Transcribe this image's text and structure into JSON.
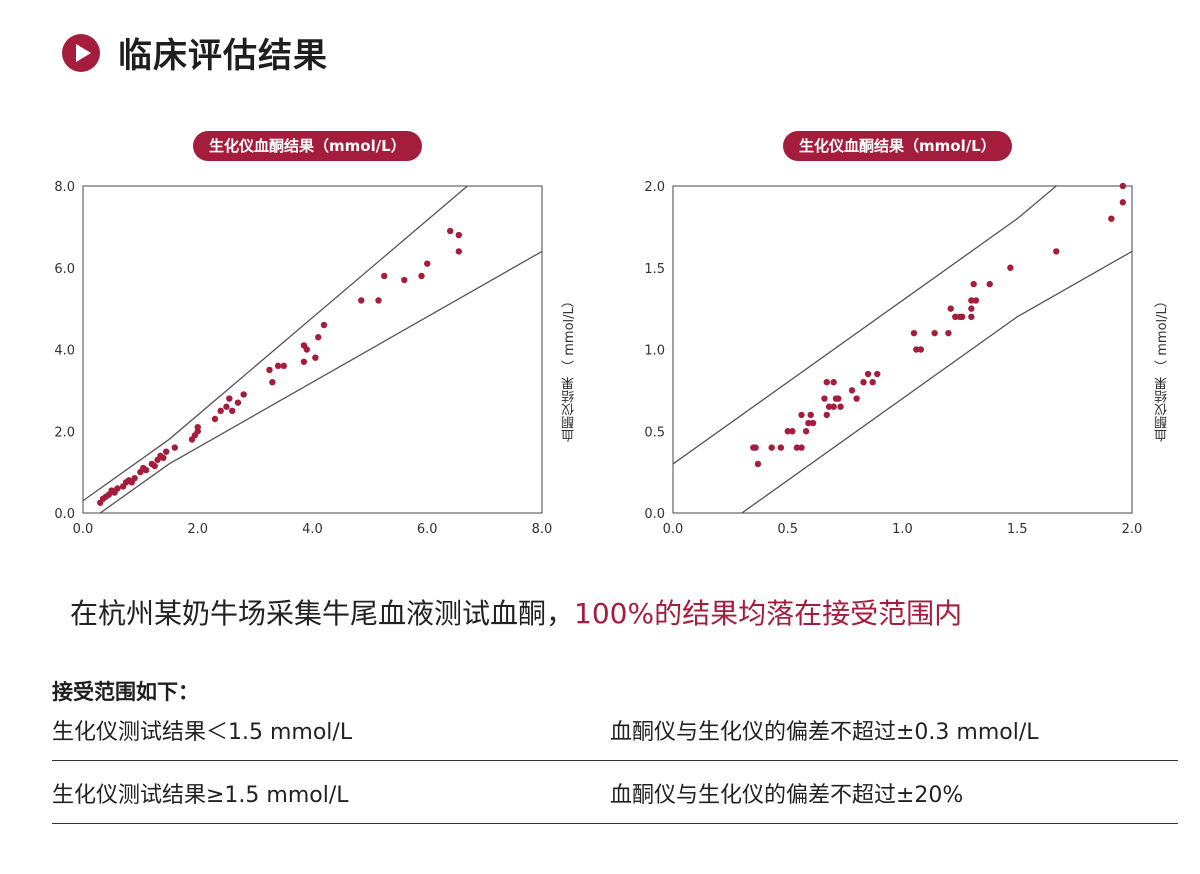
{
  "header": {
    "title": "临床评估结果"
  },
  "chart_data": [
    {
      "type": "scatter",
      "title": "生化仪血酮结果（mmol/L）",
      "ylabel": "血酮仪结果 （ mmol/L）",
      "xlim": [
        0,
        8
      ],
      "ylim": [
        0,
        8
      ],
      "x_ticks": [
        "0.0",
        "2.0",
        "4.0",
        "6.0",
        "8.0"
      ],
      "y_ticks": [
        "0.0",
        "2.0",
        "4.0",
        "6.0",
        "8.0"
      ],
      "grid": false,
      "bounds": [
        {
          "name": "upper",
          "points": [
            [
              0,
              0.3
            ],
            [
              1.5,
              1.8
            ],
            [
              6.7,
              8.0
            ]
          ]
        },
        {
          "name": "lower",
          "points": [
            [
              0.3,
              0
            ],
            [
              1.5,
              1.2
            ],
            [
              8.0,
              6.4
            ]
          ]
        }
      ],
      "points": [
        [
          0.3,
          0.25
        ],
        [
          0.35,
          0.35
        ],
        [
          0.4,
          0.4
        ],
        [
          0.45,
          0.45
        ],
        [
          0.5,
          0.55
        ],
        [
          0.55,
          0.5
        ],
        [
          0.6,
          0.6
        ],
        [
          0.7,
          0.65
        ],
        [
          0.75,
          0.75
        ],
        [
          0.8,
          0.8
        ],
        [
          0.85,
          0.75
        ],
        [
          0.9,
          0.85
        ],
        [
          1.0,
          1.0
        ],
        [
          1.05,
          1.1
        ],
        [
          1.1,
          1.05
        ],
        [
          1.2,
          1.2
        ],
        [
          1.25,
          1.15
        ],
        [
          1.3,
          1.3
        ],
        [
          1.35,
          1.4
        ],
        [
          1.4,
          1.35
        ],
        [
          1.45,
          1.5
        ],
        [
          1.6,
          1.6
        ],
        [
          1.9,
          1.8
        ],
        [
          1.95,
          1.9
        ],
        [
          2.0,
          2.0
        ],
        [
          2.0,
          2.1
        ],
        [
          2.3,
          2.3
        ],
        [
          2.4,
          2.5
        ],
        [
          2.5,
          2.6
        ],
        [
          2.55,
          2.8
        ],
        [
          2.6,
          2.5
        ],
        [
          2.7,
          2.7
        ],
        [
          2.8,
          2.9
        ],
        [
          3.25,
          3.5
        ],
        [
          3.3,
          3.2
        ],
        [
          3.4,
          3.6
        ],
        [
          3.5,
          3.6
        ],
        [
          3.85,
          3.7
        ],
        [
          3.85,
          4.1
        ],
        [
          3.9,
          4.0
        ],
        [
          4.05,
          3.8
        ],
        [
          4.1,
          4.3
        ],
        [
          4.2,
          4.6
        ],
        [
          4.85,
          5.2
        ],
        [
          5.15,
          5.2
        ],
        [
          5.25,
          5.8
        ],
        [
          5.6,
          5.7
        ],
        [
          5.9,
          5.8
        ],
        [
          6.0,
          6.1
        ],
        [
          6.4,
          6.9
        ],
        [
          6.55,
          6.8
        ],
        [
          6.55,
          6.4
        ]
      ]
    },
    {
      "type": "scatter",
      "title": "生化仪血酮结果（mmol/L）",
      "ylabel": "血酮仪结果 （ mmol/L）",
      "xlim": [
        0,
        2
      ],
      "ylim": [
        0,
        2
      ],
      "x_ticks": [
        "0.0",
        "0.5",
        "1.0",
        "1.5",
        "2.0"
      ],
      "y_ticks": [
        "0.0",
        "0.5",
        "1.0",
        "1.5",
        "2.0"
      ],
      "grid": false,
      "bounds": [
        {
          "name": "upper",
          "points": [
            [
              0,
              0.3
            ],
            [
              1.5,
              1.8
            ],
            [
              1.67,
              2.0
            ]
          ]
        },
        {
          "name": "lower",
          "points": [
            [
              0.3,
              0
            ],
            [
              1.5,
              1.2
            ],
            [
              2.0,
              1.6
            ]
          ]
        }
      ],
      "points": [
        [
          0.35,
          0.4
        ],
        [
          0.36,
          0.4
        ],
        [
          0.37,
          0.3
        ],
        [
          0.43,
          0.4
        ],
        [
          0.47,
          0.4
        ],
        [
          0.5,
          0.5
        ],
        [
          0.52,
          0.5
        ],
        [
          0.54,
          0.4
        ],
        [
          0.56,
          0.4
        ],
        [
          0.56,
          0.6
        ],
        [
          0.58,
          0.5
        ],
        [
          0.59,
          0.55
        ],
        [
          0.6,
          0.6
        ],
        [
          0.61,
          0.55
        ],
        [
          0.66,
          0.7
        ],
        [
          0.67,
          0.6
        ],
        [
          0.67,
          0.8
        ],
        [
          0.68,
          0.65
        ],
        [
          0.7,
          0.65
        ],
        [
          0.7,
          0.8
        ],
        [
          0.71,
          0.7
        ],
        [
          0.72,
          0.7
        ],
        [
          0.73,
          0.65
        ],
        [
          0.78,
          0.75
        ],
        [
          0.8,
          0.7
        ],
        [
          0.83,
          0.8
        ],
        [
          0.85,
          0.85
        ],
        [
          0.87,
          0.8
        ],
        [
          0.89,
          0.85
        ],
        [
          1.05,
          1.1
        ],
        [
          1.06,
          1.0
        ],
        [
          1.08,
          1.0
        ],
        [
          1.14,
          1.1
        ],
        [
          1.2,
          1.1
        ],
        [
          1.21,
          1.25
        ],
        [
          1.23,
          1.2
        ],
        [
          1.25,
          1.2
        ],
        [
          1.26,
          1.2
        ],
        [
          1.3,
          1.2
        ],
        [
          1.3,
          1.25
        ],
        [
          1.3,
          1.3
        ],
        [
          1.31,
          1.4
        ],
        [
          1.32,
          1.3
        ],
        [
          1.38,
          1.4
        ],
        [
          1.47,
          1.5
        ],
        [
          1.67,
          1.6
        ],
        [
          1.91,
          1.8
        ],
        [
          1.96,
          1.9
        ],
        [
          1.96,
          2.0
        ]
      ]
    }
  ],
  "conclusion": {
    "text": "在杭州某奶牛场采集牛尾血液测试血酮，",
    "highlight": "100%的结果均落在接受范围内"
  },
  "range": {
    "heading": "接受范围如下：",
    "rows": [
      {
        "condition": "生化仪测试结果＜1.5 mmol/L",
        "rule": "血酮仪与生化仪的偏差不超过±0.3 mmol/L"
      },
      {
        "condition": "生化仪测试结果≥1.5 mmol/L",
        "rule": "血酮仪与生化仪的偏差不超过±20%"
      }
    ]
  },
  "colors": {
    "accent": "#a51d3c",
    "point": "#a51d3c",
    "line": "#555555"
  }
}
